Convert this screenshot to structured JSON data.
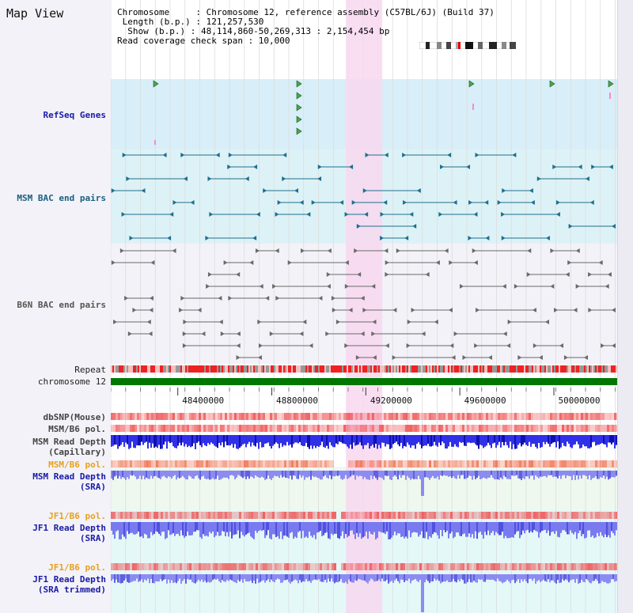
{
  "title": "Map View",
  "info": {
    "chromosome": "Chromosome     : Chromosome 12, reference assembly (C57BL/6J) (Build 37)",
    "length": " Length (b.p.) : 121,257,530",
    "show": "  Show (b.p.) : 48,114,860-50,269,313 : 2,154,454 bp",
    "read_coverage": "Read coverage check span : 10,000"
  },
  "tracks": [
    {
      "label": "RefSeq Genes"
    },
    {
      "label": "MSM BAC end pairs"
    },
    {
      "label": "B6N BAC end pairs"
    },
    {
      "label": "Repeat"
    },
    {
      "label": "chromosome 12"
    },
    {
      "label": "dbSNP(Mouse)"
    },
    {
      "label": "MSM/B6 pol."
    },
    {
      "label": "MSM Read Depth",
      "sublabel": "(Capillary)"
    },
    {
      "label": "MSM/B6 pol."
    },
    {
      "label": "MSM Read Depth",
      "sublabel": "(SRA)"
    },
    {
      "label": "JF1/B6 pol."
    },
    {
      "label": "JF1 Read Depth",
      "sublabel": "(SRA)"
    },
    {
      "label": "JF1/B6 pol."
    },
    {
      "label": "JF1 Read Depth",
      "sublabel": "(SRA trimmed)"
    }
  ],
  "axis": {
    "start": 48114860,
    "end": 50269313,
    "ticks": [
      {
        "value": 48400000,
        "label": "48400000"
      },
      {
        "value": 48800000,
        "label": "48800000"
      },
      {
        "value": 49200000,
        "label": "49200000"
      },
      {
        "value": 49600000,
        "label": "49600000"
      },
      {
        "value": 50000000,
        "label": "50000000"
      }
    ]
  },
  "highlight_region": {
    "start": 49115000,
    "end": 49270000
  },
  "colors": {
    "refseq_bg": "#d8eef8",
    "msm_bac_bg": "#ddf2f6",
    "b6n_bg": "#f2f2f8",
    "highlight": "#f8d8f0",
    "msm_bac": "#1f6f8f",
    "b6n_bac": "#6a6a6a",
    "chromosome_bar": "#007700",
    "repeat_red": "#ee2222",
    "pol_red": "#f08080",
    "depth_blue_dark": "#2020e0",
    "depth_blue_light": "#8080f0",
    "refseq_arrow": "#44aa44"
  }
}
